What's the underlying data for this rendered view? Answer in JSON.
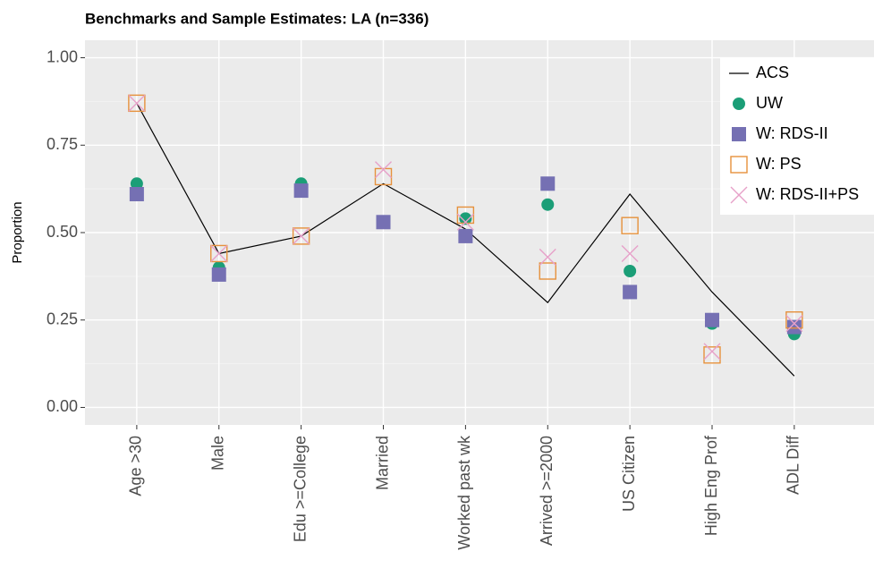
{
  "chart_data": {
    "type": "line",
    "title": "Benchmarks and Sample Estimates: LA (n=336)",
    "y_label": "Proportion",
    "categories": [
      "Age >30",
      "Male",
      "Edu >=College",
      "Married",
      "Worked past wk",
      "Arrived >=2000",
      "US Citizen",
      "High Eng Prof",
      "ADL Diff"
    ],
    "ylim": [
      -0.05,
      1.05
    ],
    "yticks": [
      {
        "value": 0,
        "label": "0.00"
      },
      0.25,
      {
        "value": 0.5,
        "label": "0.50"
      },
      0.75,
      {
        "value": 1,
        "label": "1.00"
      }
    ],
    "grid": true,
    "legend": "top-right",
    "series": [
      {
        "name": "ACS",
        "color": "#000000",
        "marker": "line",
        "values": [
          0.87,
          0.44,
          0.49,
          0.64,
          0.51,
          0.3,
          0.61,
          0.33,
          0.09
        ]
      },
      {
        "name": "UW",
        "color": "#1b9e77",
        "marker": "circle",
        "values": [
          0.64,
          0.4,
          0.64,
          0.53,
          0.54,
          0.58,
          0.39,
          0.24,
          0.21
        ]
      },
      {
        "name": "W: RDS-II",
        "color": "#7570b3",
        "marker": "square",
        "values": [
          0.61,
          0.38,
          0.62,
          0.53,
          0.49,
          0.64,
          0.33,
          0.25,
          0.23
        ]
      },
      {
        "name": "W: PS",
        "color": "#e6913c",
        "marker": "open-square",
        "values": [
          0.87,
          0.44,
          0.49,
          0.66,
          0.55,
          0.39,
          0.52,
          0.15,
          0.25
        ]
      },
      {
        "name": "W: RDS-II+PS",
        "color": "#e7a1c9",
        "marker": "cross",
        "values": [
          0.87,
          0.44,
          0.49,
          0.68,
          0.53,
          0.43,
          0.44,
          0.16,
          0.24
        ]
      }
    ]
  }
}
